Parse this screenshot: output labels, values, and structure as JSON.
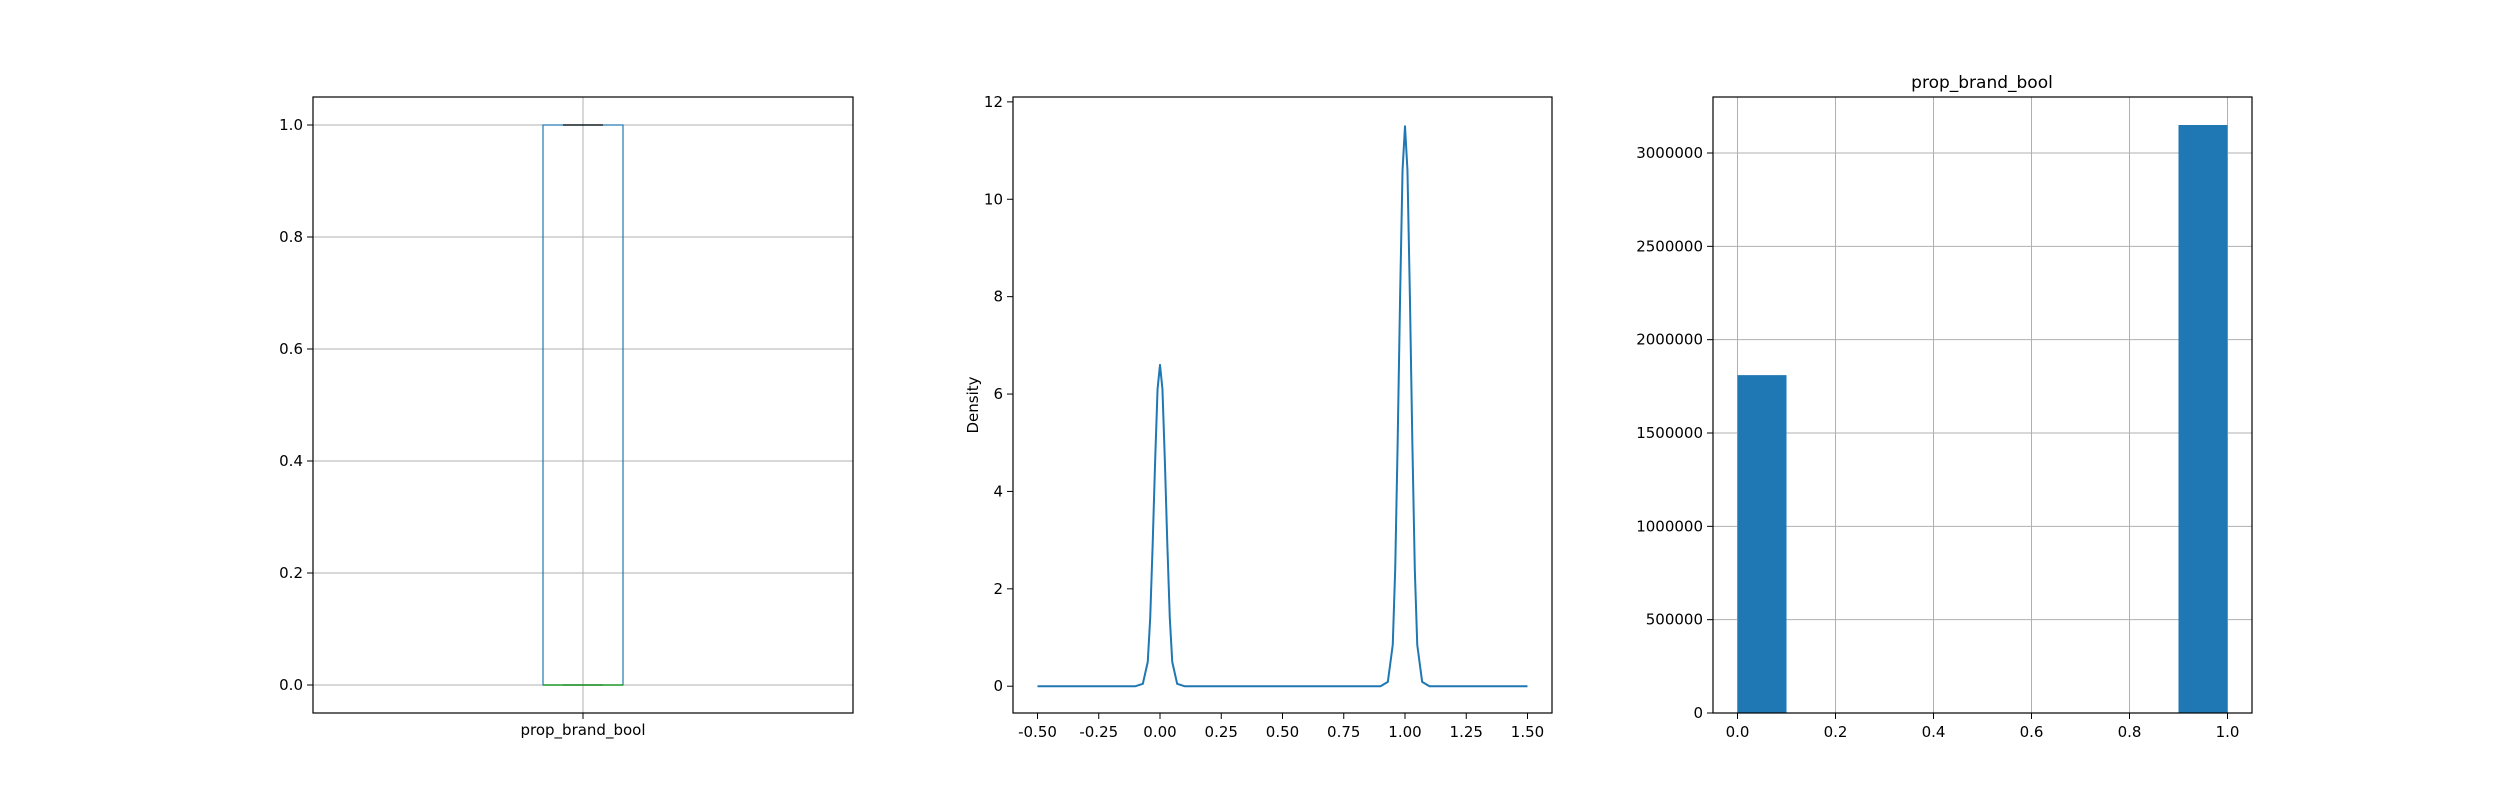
{
  "chart_data": [
    {
      "type": "box",
      "title": "",
      "categories": [
        "prop_brand_bool"
      ],
      "box": {
        "min": 0.0,
        "q1": 0.0,
        "median": 0.0,
        "q3": 1.0,
        "max": 1.0
      },
      "ylim": [
        -0.05,
        1.05
      ],
      "yticks": [
        "0.0",
        "0.2",
        "0.4",
        "0.6",
        "0.8",
        "1.0"
      ],
      "ytick_values": [
        0.0,
        0.2,
        0.4,
        0.6,
        0.8,
        1.0
      ],
      "grid": true,
      "colors": {
        "box": "#1f77b4",
        "median": "#2ca02c",
        "whisker": "#000000"
      }
    },
    {
      "type": "line",
      "title": "",
      "ylabel": "Density",
      "xlabel": "",
      "xlim": [
        -0.6,
        1.6
      ],
      "ylim": [
        -0.55,
        12.1
      ],
      "xticks": [
        "-0.50",
        "-0.25",
        "0.00",
        "0.25",
        "0.50",
        "0.75",
        "1.00",
        "1.25",
        "1.50"
      ],
      "xtick_values": [
        -0.5,
        -0.25,
        0.0,
        0.25,
        0.5,
        0.75,
        1.0,
        1.25,
        1.5
      ],
      "yticks": [
        "0",
        "2",
        "4",
        "6",
        "8",
        "10",
        "12"
      ],
      "ytick_values": [
        0,
        2,
        4,
        6,
        8,
        10,
        12
      ],
      "grid": false,
      "series": [
        {
          "x": [
            -0.5,
            -0.2,
            -0.1,
            -0.07,
            -0.05,
            -0.04,
            -0.03,
            -0.02,
            -0.01,
            0.0,
            0.01,
            0.02,
            0.03,
            0.04,
            0.05,
            0.07,
            0.1,
            0.2,
            0.5,
            0.8,
            0.9,
            0.93,
            0.95,
            0.96,
            0.97,
            0.98,
            0.99,
            1.0,
            1.01,
            1.02,
            1.03,
            1.04,
            1.05,
            1.07,
            1.1,
            1.2,
            1.5
          ],
          "y": [
            0.0,
            0.0,
            0.0,
            0.05,
            0.5,
            1.4,
            2.9,
            4.6,
            6.1,
            6.6,
            6.1,
            4.6,
            2.9,
            1.4,
            0.5,
            0.05,
            0.0,
            0.0,
            0.0,
            0.0,
            0.0,
            0.09,
            0.85,
            2.4,
            5.0,
            8.0,
            10.6,
            11.5,
            10.6,
            8.0,
            5.0,
            2.4,
            0.85,
            0.09,
            0.0,
            0.0,
            0.0
          ]
        }
      ],
      "colors": {
        "line": "#1f77b4"
      }
    },
    {
      "type": "bar",
      "title": "prop_brand_bool",
      "xlim": [
        -0.05,
        1.05
      ],
      "ylim": [
        0,
        3300000
      ],
      "xticks": [
        "0.0",
        "0.2",
        "0.4",
        "0.6",
        "0.8",
        "1.0"
      ],
      "xtick_values": [
        0.0,
        0.2,
        0.4,
        0.6,
        0.8,
        1.0
      ],
      "yticks": [
        "0",
        "500000",
        "1000000",
        "1500000",
        "2000000",
        "2500000",
        "3000000"
      ],
      "ytick_values": [
        0,
        500000,
        1000000,
        1500000,
        2000000,
        2500000,
        3000000
      ],
      "grid": true,
      "bins": [
        {
          "x0": 0.0,
          "x1": 0.1,
          "value": 1810000
        },
        {
          "x0": 0.9,
          "x1": 1.0,
          "value": 3150000
        }
      ],
      "colors": {
        "bar": "#1f77b4"
      }
    }
  ]
}
